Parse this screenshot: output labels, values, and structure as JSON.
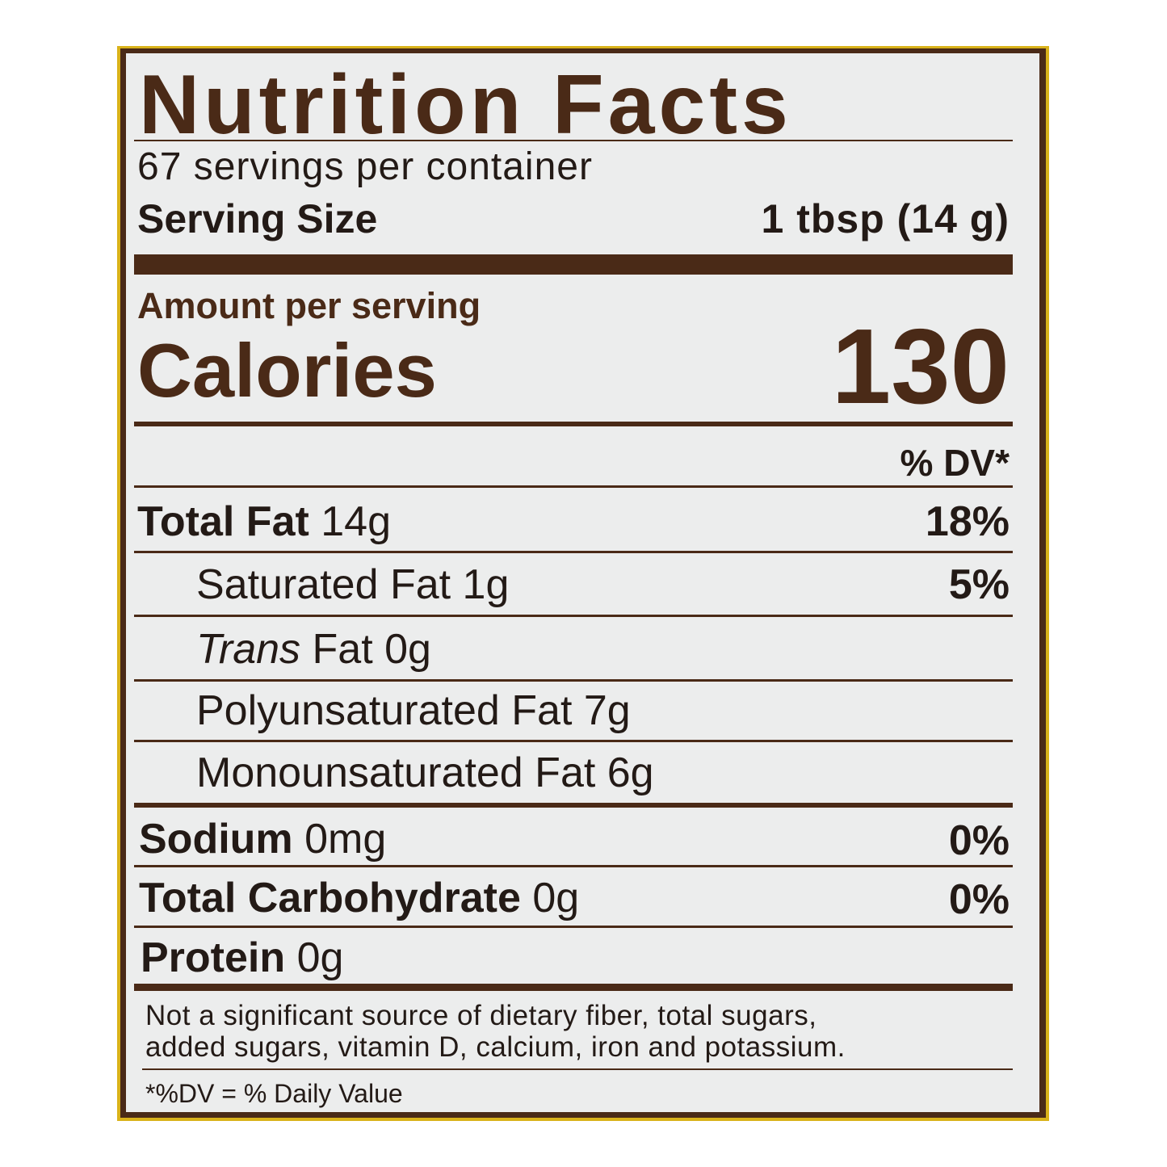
{
  "label": {
    "title": "Nutrition Facts",
    "servings_per_container": "67 servings per container",
    "serving_size_label": "Serving Size",
    "serving_size_value": "1 tbsp (14 g)",
    "amount_per_serving": "Amount per serving",
    "calories_label": "Calories",
    "calories_value": "130",
    "dv_header": "% DV*",
    "nutrients": [
      {
        "name": "Total Fat",
        "amount": "14g",
        "dv": "18%"
      },
      {
        "name": "Saturated Fat",
        "amount": "1g",
        "dv": "5%"
      },
      {
        "name": "Trans",
        "name_suffix": "Fat",
        "amount": "0g",
        "dv": ""
      },
      {
        "name": "Polyunsaturated Fat",
        "amount": "7g",
        "dv": ""
      },
      {
        "name": "Monounsaturated Fat",
        "amount": "6g",
        "dv": ""
      },
      {
        "name": "Sodium",
        "amount": "0mg",
        "dv": "0%"
      },
      {
        "name": "Total Carbohydrate",
        "amount": "0g",
        "dv": "0%"
      },
      {
        "name": "Protein",
        "amount": "0g",
        "dv": ""
      }
    ],
    "footnote_line1": "Not a significant source of dietary fiber, total sugars,",
    "footnote_line2": "added sugars, vitamin D, calcium, iron and potassium.",
    "dv_footnote": "*%DV = % Daily Value"
  },
  "colors": {
    "text": "#4a2a17",
    "background": "#eceded",
    "border": "#4a2a17",
    "edge": "#d9b21a"
  }
}
